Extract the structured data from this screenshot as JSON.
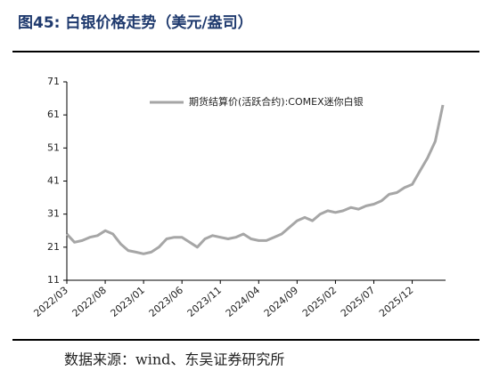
{
  "chart_data": {
    "type": "line",
    "title": "图45: 白银价格走势（美元/盎司）",
    "source": "数据来源：wind、东吴证券研究所",
    "categories": [
      "2022/03",
      null,
      null,
      null,
      null,
      "2022/08",
      null,
      null,
      null,
      null,
      "2023/01",
      null,
      null,
      null,
      null,
      "2023/06",
      null,
      null,
      null,
      null,
      "2023/11",
      null,
      null,
      null,
      null,
      "2024/04",
      null,
      null,
      null,
      null,
      "2024/09",
      null,
      null,
      null,
      null,
      "2025/02",
      null,
      null,
      null,
      null,
      "2025/07",
      null,
      null,
      null,
      null,
      "2025/12",
      null,
      null,
      null,
      null
    ],
    "series": [
      {
        "name": "期货结算价(活跃合约):COMEX迷你白银",
        "color": "#a6a6a6",
        "values": [
          25,
          22.5,
          23,
          24,
          24.5,
          26,
          25,
          22,
          20,
          19.5,
          19,
          19.5,
          21,
          23.5,
          24,
          24,
          22.5,
          21,
          23.5,
          24.5,
          24,
          23.5,
          24,
          25,
          23.5,
          23,
          23,
          24,
          25,
          27,
          29,
          30,
          29,
          31,
          32,
          31.5,
          32,
          33,
          32.5,
          33.5,
          34,
          35,
          37,
          37.5,
          39,
          40,
          44,
          48,
          53,
          64
        ]
      }
    ],
    "ylim": [
      11,
      71
    ],
    "yticks": [
      11,
      21,
      31,
      41,
      51,
      61,
      71
    ]
  }
}
